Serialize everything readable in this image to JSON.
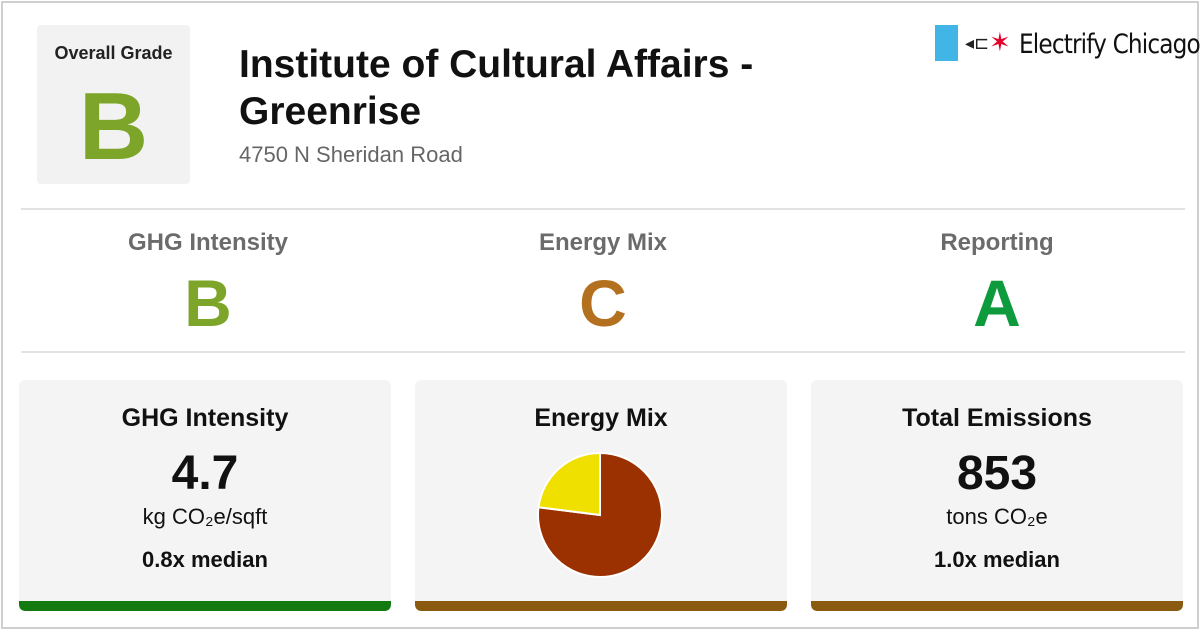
{
  "colors": {
    "grade_a": "#0d9b3e",
    "grade_b": "#7ca52a",
    "grade_c": "#b3701e",
    "bar_good": "#137a0f",
    "bar_mid": "#8a5a10",
    "pie_gas": "#9b3000",
    "pie_electric": "#f0e000"
  },
  "overall": {
    "label": "Overall Grade",
    "grade": "B"
  },
  "building": {
    "name": "Institute of Cultural Affairs - Greenrise",
    "address": "4750 N Sheridan Road"
  },
  "logo": {
    "plug_icon": "plug-icon",
    "star_icon": "star-icon",
    "text": "Electrify Chicago"
  },
  "subgrades": [
    {
      "label": "GHG Intensity",
      "grade": "B"
    },
    {
      "label": "Energy Mix",
      "grade": "C"
    },
    {
      "label": "Reporting",
      "grade": "A"
    }
  ],
  "cards": {
    "ghg": {
      "title": "GHG Intensity",
      "value": "4.7",
      "unit": "kg CO₂e/sqft",
      "median": "0.8x median"
    },
    "mix": {
      "title": "Energy Mix"
    },
    "total": {
      "title": "Total Emissions",
      "value": "853",
      "unit": "tons CO₂e",
      "median": "1.0x median"
    }
  },
  "chart_data": {
    "type": "pie",
    "slices": [
      {
        "value": 0.77,
        "color": "#9b3000"
      },
      {
        "value": 0.23,
        "color": "#f0e000"
      }
    ]
  }
}
